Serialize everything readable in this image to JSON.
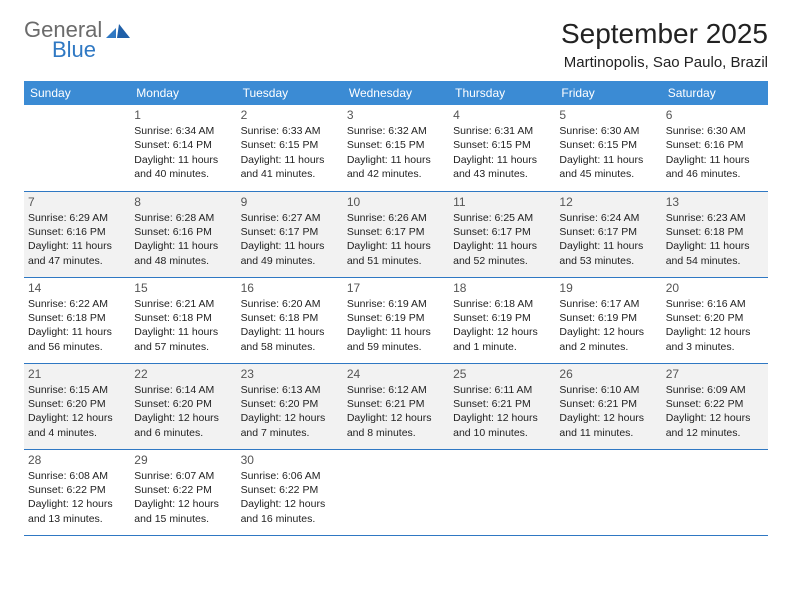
{
  "brand": {
    "word1": "General",
    "word2": "Blue",
    "word1_color": "#6b6b6b",
    "word2_color": "#2f78c3"
  },
  "title": "September 2025",
  "location": "Martinopolis, Sao Paulo, Brazil",
  "header_bg": "#3b8bd4",
  "row_border": "#2f78c3",
  "shade_bg": "#f2f2f2",
  "weekdays": [
    "Sunday",
    "Monday",
    "Tuesday",
    "Wednesday",
    "Thursday",
    "Friday",
    "Saturday"
  ],
  "weeks": [
    {
      "shaded": false,
      "cells": [
        {
          "num": "",
          "lines": []
        },
        {
          "num": "1",
          "lines": [
            "Sunrise: 6:34 AM",
            "Sunset: 6:14 PM",
            "Daylight: 11 hours",
            "and 40 minutes."
          ]
        },
        {
          "num": "2",
          "lines": [
            "Sunrise: 6:33 AM",
            "Sunset: 6:15 PM",
            "Daylight: 11 hours",
            "and 41 minutes."
          ]
        },
        {
          "num": "3",
          "lines": [
            "Sunrise: 6:32 AM",
            "Sunset: 6:15 PM",
            "Daylight: 11 hours",
            "and 42 minutes."
          ]
        },
        {
          "num": "4",
          "lines": [
            "Sunrise: 6:31 AM",
            "Sunset: 6:15 PM",
            "Daylight: 11 hours",
            "and 43 minutes."
          ]
        },
        {
          "num": "5",
          "lines": [
            "Sunrise: 6:30 AM",
            "Sunset: 6:15 PM",
            "Daylight: 11 hours",
            "and 45 minutes."
          ]
        },
        {
          "num": "6",
          "lines": [
            "Sunrise: 6:30 AM",
            "Sunset: 6:16 PM",
            "Daylight: 11 hours",
            "and 46 minutes."
          ]
        }
      ]
    },
    {
      "shaded": true,
      "cells": [
        {
          "num": "7",
          "lines": [
            "Sunrise: 6:29 AM",
            "Sunset: 6:16 PM",
            "Daylight: 11 hours",
            "and 47 minutes."
          ]
        },
        {
          "num": "8",
          "lines": [
            "Sunrise: 6:28 AM",
            "Sunset: 6:16 PM",
            "Daylight: 11 hours",
            "and 48 minutes."
          ]
        },
        {
          "num": "9",
          "lines": [
            "Sunrise: 6:27 AM",
            "Sunset: 6:17 PM",
            "Daylight: 11 hours",
            "and 49 minutes."
          ]
        },
        {
          "num": "10",
          "lines": [
            "Sunrise: 6:26 AM",
            "Sunset: 6:17 PM",
            "Daylight: 11 hours",
            "and 51 minutes."
          ]
        },
        {
          "num": "11",
          "lines": [
            "Sunrise: 6:25 AM",
            "Sunset: 6:17 PM",
            "Daylight: 11 hours",
            "and 52 minutes."
          ]
        },
        {
          "num": "12",
          "lines": [
            "Sunrise: 6:24 AM",
            "Sunset: 6:17 PM",
            "Daylight: 11 hours",
            "and 53 minutes."
          ]
        },
        {
          "num": "13",
          "lines": [
            "Sunrise: 6:23 AM",
            "Sunset: 6:18 PM",
            "Daylight: 11 hours",
            "and 54 minutes."
          ]
        }
      ]
    },
    {
      "shaded": false,
      "cells": [
        {
          "num": "14",
          "lines": [
            "Sunrise: 6:22 AM",
            "Sunset: 6:18 PM",
            "Daylight: 11 hours",
            "and 56 minutes."
          ]
        },
        {
          "num": "15",
          "lines": [
            "Sunrise: 6:21 AM",
            "Sunset: 6:18 PM",
            "Daylight: 11 hours",
            "and 57 minutes."
          ]
        },
        {
          "num": "16",
          "lines": [
            "Sunrise: 6:20 AM",
            "Sunset: 6:18 PM",
            "Daylight: 11 hours",
            "and 58 minutes."
          ]
        },
        {
          "num": "17",
          "lines": [
            "Sunrise: 6:19 AM",
            "Sunset: 6:19 PM",
            "Daylight: 11 hours",
            "and 59 minutes."
          ]
        },
        {
          "num": "18",
          "lines": [
            "Sunrise: 6:18 AM",
            "Sunset: 6:19 PM",
            "Daylight: 12 hours",
            "and 1 minute."
          ]
        },
        {
          "num": "19",
          "lines": [
            "Sunrise: 6:17 AM",
            "Sunset: 6:19 PM",
            "Daylight: 12 hours",
            "and 2 minutes."
          ]
        },
        {
          "num": "20",
          "lines": [
            "Sunrise: 6:16 AM",
            "Sunset: 6:20 PM",
            "Daylight: 12 hours",
            "and 3 minutes."
          ]
        }
      ]
    },
    {
      "shaded": true,
      "cells": [
        {
          "num": "21",
          "lines": [
            "Sunrise: 6:15 AM",
            "Sunset: 6:20 PM",
            "Daylight: 12 hours",
            "and 4 minutes."
          ]
        },
        {
          "num": "22",
          "lines": [
            "Sunrise: 6:14 AM",
            "Sunset: 6:20 PM",
            "Daylight: 12 hours",
            "and 6 minutes."
          ]
        },
        {
          "num": "23",
          "lines": [
            "Sunrise: 6:13 AM",
            "Sunset: 6:20 PM",
            "Daylight: 12 hours",
            "and 7 minutes."
          ]
        },
        {
          "num": "24",
          "lines": [
            "Sunrise: 6:12 AM",
            "Sunset: 6:21 PM",
            "Daylight: 12 hours",
            "and 8 minutes."
          ]
        },
        {
          "num": "25",
          "lines": [
            "Sunrise: 6:11 AM",
            "Sunset: 6:21 PM",
            "Daylight: 12 hours",
            "and 10 minutes."
          ]
        },
        {
          "num": "26",
          "lines": [
            "Sunrise: 6:10 AM",
            "Sunset: 6:21 PM",
            "Daylight: 12 hours",
            "and 11 minutes."
          ]
        },
        {
          "num": "27",
          "lines": [
            "Sunrise: 6:09 AM",
            "Sunset: 6:22 PM",
            "Daylight: 12 hours",
            "and 12 minutes."
          ]
        }
      ]
    },
    {
      "shaded": false,
      "cells": [
        {
          "num": "28",
          "lines": [
            "Sunrise: 6:08 AM",
            "Sunset: 6:22 PM",
            "Daylight: 12 hours",
            "and 13 minutes."
          ]
        },
        {
          "num": "29",
          "lines": [
            "Sunrise: 6:07 AM",
            "Sunset: 6:22 PM",
            "Daylight: 12 hours",
            "and 15 minutes."
          ]
        },
        {
          "num": "30",
          "lines": [
            "Sunrise: 6:06 AM",
            "Sunset: 6:22 PM",
            "Daylight: 12 hours",
            "and 16 minutes."
          ]
        },
        {
          "num": "",
          "lines": []
        },
        {
          "num": "",
          "lines": []
        },
        {
          "num": "",
          "lines": []
        },
        {
          "num": "",
          "lines": []
        }
      ]
    }
  ]
}
